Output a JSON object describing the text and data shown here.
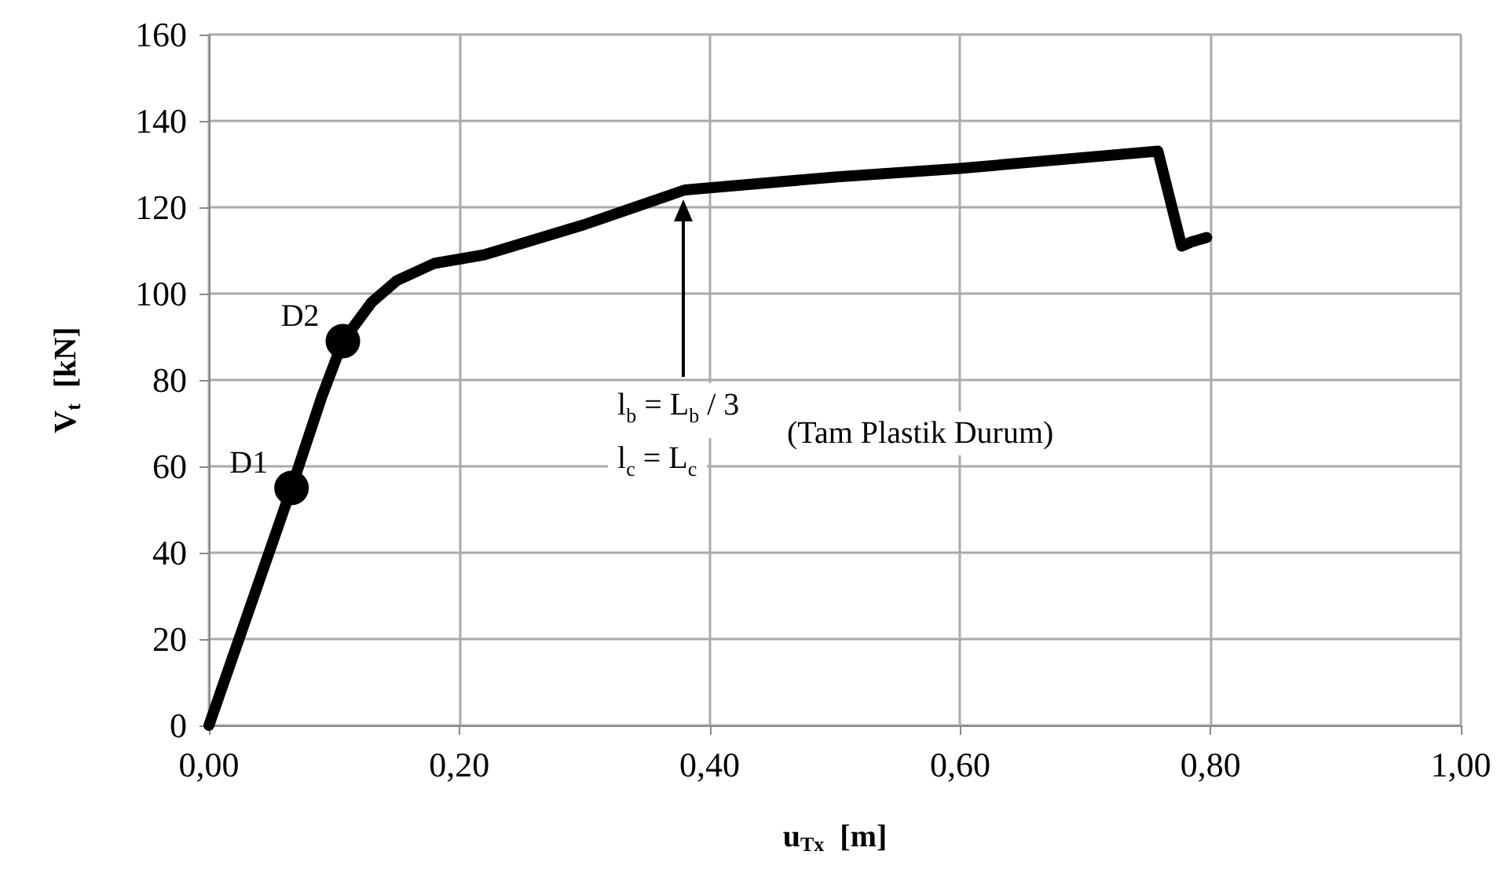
{
  "chart_data": {
    "type": "line",
    "xlabel": "u$_{Tx}$  [m]",
    "ylabel": "V$_{t}$  [kN]",
    "xlim": [
      0,
      1
    ],
    "xticks": [
      {
        "value": 0,
        "label": "0,00"
      },
      {
        "value": 0.2,
        "label": "0,20"
      },
      {
        "value": 0.4,
        "label": "0,40"
      },
      {
        "value": 0.6,
        "label": "0,60"
      },
      {
        "value": 0.8,
        "label": "0,80"
      },
      {
        "value": 1,
        "label": "1,00"
      }
    ],
    "ylim": [
      0,
      160
    ],
    "yticks": [
      0,
      20,
      40,
      60,
      80,
      100,
      120,
      140,
      160
    ],
    "grid": true,
    "series": [
      {
        "color": "#000000",
        "marker": "none",
        "line_style": "solid",
        "x": [
          0,
          0.066,
          0.09,
          0.107,
          0.13,
          0.15,
          0.18,
          0.22,
          0.3,
          0.38,
          0.5,
          0.6,
          0.758,
          0.777,
          0.785,
          0.797
        ],
        "values": [
          0,
          55,
          76,
          89,
          98,
          103,
          107,
          109,
          116,
          124,
          127,
          129,
          133,
          111,
          112,
          113
        ]
      },
      {
        "type": "scatter",
        "color": "#000000",
        "marker": "circle",
        "x": [
          0.066,
          0.107
        ],
        "values": [
          55,
          89
        ],
        "value_labels": [
          "D1",
          "D2"
        ]
      }
    ],
    "annotations": [
      "l$_{b}$ = L$_{b}$ / 3",
      "l$_{c}$ = L$_{c}$",
      "(Tam Plastik Durum)"
    ]
  }
}
